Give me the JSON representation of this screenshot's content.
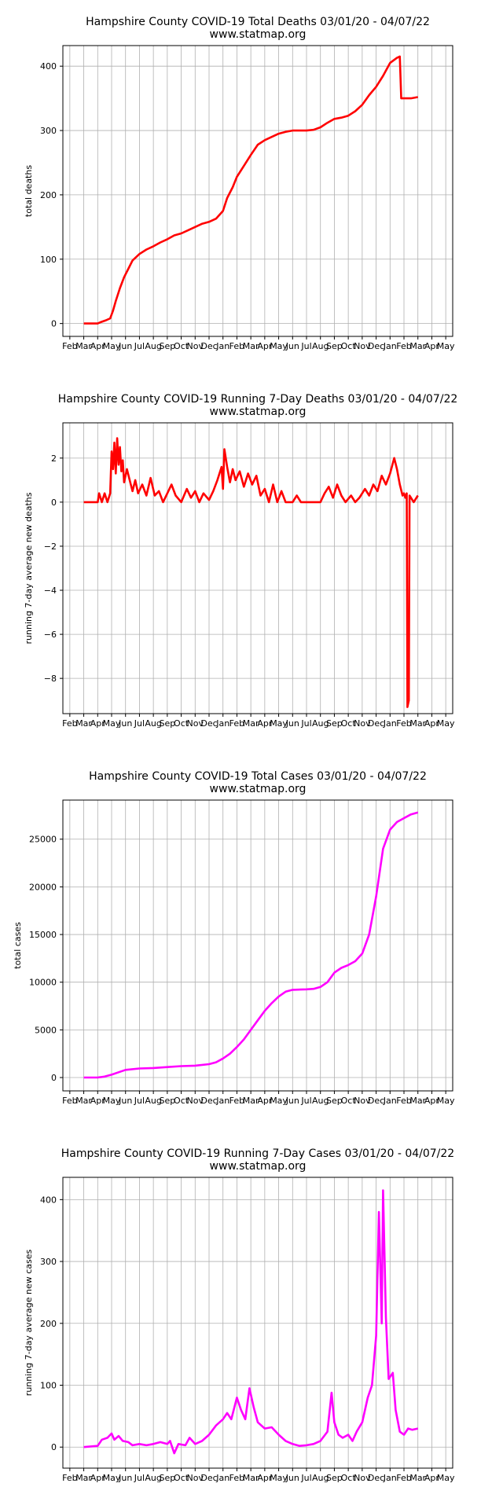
{
  "x_tick_labels": [
    "Feb",
    "Mar",
    "Apr",
    "May",
    "Jun",
    "Jul",
    "Aug",
    "Sep",
    "Oct",
    "Nov",
    "Dec",
    "Jan",
    "Feb",
    "Mar",
    "Apr",
    "May",
    "Jun",
    "Jul",
    "Aug",
    "Sep",
    "Oct",
    "Nov",
    "Dec",
    "Jan",
    "Feb",
    "Mar",
    "Apr",
    "May"
  ],
  "chart_data": [
    {
      "type": "line",
      "title": "Hampshire County COVID-19 Total Deaths 03/01/20 - 04/07/22",
      "subtitle": "www.statmap.org",
      "ylabel": "total deaths",
      "ylim": [
        -20,
        432
      ],
      "yticks": [
        0,
        100,
        200,
        300,
        400
      ],
      "color": "#ff0000",
      "series": [
        {
          "points": [
            [
              1,
              0
            ],
            [
              2,
              0
            ],
            [
              2.2,
              2
            ],
            [
              2.6,
              5
            ],
            [
              2.9,
              8
            ],
            [
              3.1,
              20
            ],
            [
              3.3,
              35
            ],
            [
              3.6,
              55
            ],
            [
              3.9,
              72
            ],
            [
              4.2,
              85
            ],
            [
              4.5,
              98
            ],
            [
              5,
              108
            ],
            [
              5.5,
              115
            ],
            [
              6,
              120
            ],
            [
              6.5,
              126
            ],
            [
              7,
              131
            ],
            [
              7.5,
              137
            ],
            [
              8,
              140
            ],
            [
              8.5,
              145
            ],
            [
              9,
              150
            ],
            [
              9.5,
              155
            ],
            [
              10,
              158
            ],
            [
              10.5,
              163
            ],
            [
              11,
              175
            ],
            [
              11.3,
              195
            ],
            [
              11.7,
              212
            ],
            [
              12,
              228
            ],
            [
              12.5,
              245
            ],
            [
              13,
              262
            ],
            [
              13.5,
              278
            ],
            [
              14,
              285
            ],
            [
              14.5,
              290
            ],
            [
              15,
              295
            ],
            [
              15.5,
              298
            ],
            [
              16,
              300
            ],
            [
              16.5,
              300
            ],
            [
              17,
              300
            ],
            [
              17.5,
              301
            ],
            [
              18,
              305
            ],
            [
              18.5,
              312
            ],
            [
              19,
              318
            ],
            [
              19.5,
              320
            ],
            [
              20,
              323
            ],
            [
              20.5,
              330
            ],
            [
              21,
              340
            ],
            [
              21.5,
              355
            ],
            [
              22,
              368
            ],
            [
              22.5,
              385
            ],
            [
              23,
              405
            ],
            [
              23.5,
              413
            ],
            [
              23.7,
              415
            ],
            [
              23.8,
              350
            ],
            [
              24.5,
              350
            ],
            [
              25,
              352
            ]
          ]
        }
      ]
    },
    {
      "type": "line",
      "title": "Hampshire County COVID-19 Running 7-Day Deaths 03/01/20 - 04/07/22",
      "subtitle": "www.statmap.org",
      "ylabel": "running 7-day average new deaths",
      "ylim": [
        -9.6,
        3.6
      ],
      "yticks": [
        -8,
        -6,
        -4,
        -2,
        0,
        2
      ],
      "color": "#ff0000",
      "series": [
        {
          "points": [
            [
              1,
              0
            ],
            [
              2,
              0
            ],
            [
              2.1,
              0.4
            ],
            [
              2.3,
              0
            ],
            [
              2.5,
              0.4
            ],
            [
              2.7,
              0
            ],
            [
              2.9,
              0.4
            ],
            [
              3.0,
              2.3
            ],
            [
              3.1,
              1.5
            ],
            [
              3.2,
              2.7
            ],
            [
              3.3,
              1.3
            ],
            [
              3.4,
              2.9
            ],
            [
              3.5,
              1.7
            ],
            [
              3.6,
              2.5
            ],
            [
              3.7,
              1.4
            ],
            [
              3.8,
              1.9
            ],
            [
              3.9,
              0.9
            ],
            [
              4.1,
              1.5
            ],
            [
              4.3,
              1.0
            ],
            [
              4.5,
              0.5
            ],
            [
              4.7,
              1.0
            ],
            [
              4.9,
              0.4
            ],
            [
              5.2,
              0.8
            ],
            [
              5.5,
              0.3
            ],
            [
              5.8,
              1.1
            ],
            [
              6.1,
              0.3
            ],
            [
              6.4,
              0.5
            ],
            [
              6.7,
              0
            ],
            [
              7,
              0.4
            ],
            [
              7.3,
              0.8
            ],
            [
              7.6,
              0.3
            ],
            [
              8,
              0
            ],
            [
              8.4,
              0.6
            ],
            [
              8.7,
              0.2
            ],
            [
              9,
              0.5
            ],
            [
              9.3,
              0
            ],
            [
              9.6,
              0.4
            ],
            [
              10,
              0.1
            ],
            [
              10.3,
              0.5
            ],
            [
              10.6,
              1.0
            ],
            [
              10.9,
              1.6
            ],
            [
              11,
              0.6
            ],
            [
              11.1,
              2.4
            ],
            [
              11.3,
              1.6
            ],
            [
              11.5,
              0.9
            ],
            [
              11.7,
              1.5
            ],
            [
              11.9,
              1.0
            ],
            [
              12.2,
              1.4
            ],
            [
              12.5,
              0.7
            ],
            [
              12.8,
              1.3
            ],
            [
              13.1,
              0.8
            ],
            [
              13.4,
              1.2
            ],
            [
              13.7,
              0.3
            ],
            [
              14,
              0.6
            ],
            [
              14.3,
              0
            ],
            [
              14.6,
              0.8
            ],
            [
              14.9,
              0
            ],
            [
              15.2,
              0.5
            ],
            [
              15.5,
              0
            ],
            [
              16,
              0
            ],
            [
              16.3,
              0.3
            ],
            [
              16.6,
              0
            ],
            [
              17,
              0
            ],
            [
              17.5,
              0
            ],
            [
              18,
              0
            ],
            [
              18.3,
              0.4
            ],
            [
              18.6,
              0.7
            ],
            [
              18.9,
              0.2
            ],
            [
              19.2,
              0.8
            ],
            [
              19.5,
              0.3
            ],
            [
              19.8,
              0
            ],
            [
              20.2,
              0.3
            ],
            [
              20.5,
              0
            ],
            [
              20.8,
              0.2
            ],
            [
              21.2,
              0.6
            ],
            [
              21.5,
              0.3
            ],
            [
              21.8,
              0.8
            ],
            [
              22.1,
              0.5
            ],
            [
              22.4,
              1.2
            ],
            [
              22.7,
              0.8
            ],
            [
              23,
              1.3
            ],
            [
              23.3,
              2.0
            ],
            [
              23.5,
              1.5
            ],
            [
              23.7,
              0.8
            ],
            [
              23.9,
              0.3
            ],
            [
              24.0,
              0.4
            ],
            [
              24.1,
              0.2
            ],
            [
              24.2,
              0.4
            ],
            [
              24.25,
              -9.3
            ],
            [
              24.35,
              -9.0
            ],
            [
              24.4,
              0.3
            ],
            [
              24.7,
              0
            ],
            [
              25,
              0.3
            ]
          ]
        }
      ]
    },
    {
      "type": "line",
      "title": "Hampshire County COVID-19 Total Cases 03/01/20 - 04/07/22",
      "subtitle": "www.statmap.org",
      "ylabel": "total cases",
      "ylim": [
        -1400,
        29100
      ],
      "yticks": [
        0,
        5000,
        10000,
        15000,
        20000,
        25000
      ],
      "color": "#ff00ff",
      "series": [
        {
          "points": [
            [
              1,
              0
            ],
            [
              2,
              0
            ],
            [
              2.5,
              100
            ],
            [
              3,
              300
            ],
            [
              3.5,
              550
            ],
            [
              4,
              800
            ],
            [
              5,
              950
            ],
            [
              6,
              1000
            ],
            [
              7,
              1100
            ],
            [
              8,
              1200
            ],
            [
              9,
              1250
            ],
            [
              10,
              1400
            ],
            [
              10.5,
              1600
            ],
            [
              11,
              2000
            ],
            [
              11.5,
              2500
            ],
            [
              12,
              3200
            ],
            [
              12.5,
              4000
            ],
            [
              13,
              5000
            ],
            [
              13.5,
              6000
            ],
            [
              14,
              7000
            ],
            [
              14.5,
              7800
            ],
            [
              15,
              8500
            ],
            [
              15.5,
              9000
            ],
            [
              16,
              9200
            ],
            [
              17,
              9250
            ],
            [
              17.5,
              9300
            ],
            [
              18,
              9500
            ],
            [
              18.5,
              10000
            ],
            [
              19,
              11000
            ],
            [
              19.5,
              11500
            ],
            [
              20,
              11800
            ],
            [
              20.5,
              12200
            ],
            [
              21,
              13000
            ],
            [
              21.5,
              15000
            ],
            [
              22,
              19000
            ],
            [
              22.5,
              24000
            ],
            [
              23,
              26000
            ],
            [
              23.5,
              26800
            ],
            [
              24,
              27200
            ],
            [
              24.5,
              27600
            ],
            [
              25,
              27800
            ]
          ]
        }
      ]
    },
    {
      "type": "line",
      "title": "Hampshire County COVID-19 Running 7-Day Cases 03/01/20 - 04/07/22",
      "subtitle": "www.statmap.org",
      "ylabel": "running 7-day average new cases",
      "ylim": [
        -34,
        436
      ],
      "yticks": [
        0,
        100,
        200,
        300,
        400
      ],
      "color": "#ff00ff",
      "series": [
        {
          "points": [
            [
              1,
              0
            ],
            [
              2,
              2
            ],
            [
              2.3,
              12
            ],
            [
              2.7,
              15
            ],
            [
              3,
              22
            ],
            [
              3.2,
              12
            ],
            [
              3.5,
              18
            ],
            [
              3.8,
              10
            ],
            [
              4.2,
              8
            ],
            [
              4.5,
              3
            ],
            [
              5,
              5
            ],
            [
              5.5,
              3
            ],
            [
              6,
              5
            ],
            [
              6.5,
              8
            ],
            [
              7,
              5
            ],
            [
              7.2,
              10
            ],
            [
              7.5,
              -10
            ],
            [
              7.8,
              5
            ],
            [
              8.3,
              3
            ],
            [
              8.6,
              15
            ],
            [
              9,
              5
            ],
            [
              9.5,
              10
            ],
            [
              10,
              20
            ],
            [
              10.5,
              35
            ],
            [
              11,
              45
            ],
            [
              11.3,
              55
            ],
            [
              11.6,
              45
            ],
            [
              12,
              80
            ],
            [
              12.3,
              60
            ],
            [
              12.6,
              45
            ],
            [
              12.9,
              95
            ],
            [
              13.2,
              65
            ],
            [
              13.5,
              40
            ],
            [
              14,
              30
            ],
            [
              14.5,
              32
            ],
            [
              15,
              20
            ],
            [
              15.5,
              10
            ],
            [
              16,
              5
            ],
            [
              16.5,
              2
            ],
            [
              17,
              3
            ],
            [
              17.5,
              5
            ],
            [
              18,
              10
            ],
            [
              18.5,
              25
            ],
            [
              18.8,
              88
            ],
            [
              19,
              40
            ],
            [
              19.3,
              20
            ],
            [
              19.6,
              15
            ],
            [
              20,
              20
            ],
            [
              20.3,
              10
            ],
            [
              20.6,
              25
            ],
            [
              21,
              40
            ],
            [
              21.4,
              80
            ],
            [
              21.7,
              100
            ],
            [
              22,
              180
            ],
            [
              22.2,
              380
            ],
            [
              22.4,
              200
            ],
            [
              22.5,
              415
            ],
            [
              22.7,
              210
            ],
            [
              22.9,
              110
            ],
            [
              23.2,
              120
            ],
            [
              23.4,
              60
            ],
            [
              23.7,
              25
            ],
            [
              24,
              20
            ],
            [
              24.3,
              30
            ],
            [
              24.6,
              28
            ],
            [
              25,
              30
            ]
          ]
        }
      ]
    }
  ]
}
